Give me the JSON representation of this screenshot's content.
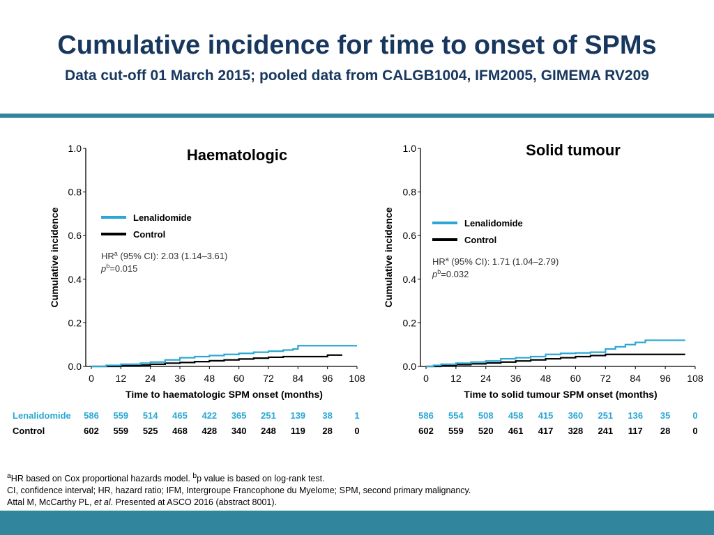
{
  "header": {
    "title": "Cumulative incidence for time to onset of SPMs",
    "subtitle": "Data cut-off 01 March 2015; pooled data from CALGB1004, IFM2005, GIMEMA RV209"
  },
  "colors": {
    "title_text": "#17375e",
    "rule": "#31859c",
    "footer_band": "#31859c",
    "lenalidomide": "#2aa7d4",
    "control": "#000000",
    "risk_lenalidomide_text": "#2aa7d4"
  },
  "risk_table": {
    "lenalidomide_label": "Lenalidomide",
    "control_label": "Control"
  },
  "footnotes": {
    "line1_sup_a": "a",
    "line1_part1": "HR based on Cox proportional hazards model. ",
    "line1_sup_b": "b",
    "line1_part2": "p value is based on log-rank test.",
    "line2": "CI, confidence interval; HR, hazard ratio; IFM, Intergroupe Francophone du Myelome; SPM, second primary malignancy.",
    "line3_part1": "Attal M, McCarthy PL, ",
    "line3_italic": "et al",
    "line3_part2": ". Presented at ASCO 2016 (abstract 8001)."
  },
  "chart_data": [
    {
      "type": "line",
      "title": "Haematologic",
      "xlabel": "Time to haematologic SPM onset (months)",
      "ylabel": "Cumulative incidence",
      "xlim": [
        0,
        108
      ],
      "ylim": [
        0,
        1.0
      ],
      "x_ticks": [
        "0",
        "12",
        "24",
        "36",
        "48",
        "60",
        "72",
        "84",
        "96",
        "108"
      ],
      "y_ticks": [
        "0.0",
        "0.2",
        "0.4",
        "0.6",
        "0.8",
        "1.0"
      ],
      "grid": false,
      "legend_position": "middle-left",
      "annotation_hr_label": "HR",
      "annotation_hr_sup": "a",
      "annotation_hr_text": " (95% CI): 2.03 (1.14–3.61)",
      "annotation_p_label": "p",
      "annotation_p_sup": "b",
      "annotation_p_text": "=0.015",
      "series": [
        {
          "name": "Lenalidomide",
          "color": "#2aa7d4",
          "x": [
            0,
            6,
            12,
            20,
            24,
            30,
            36,
            42,
            48,
            54,
            60,
            66,
            72,
            78,
            82,
            84,
            90,
            96,
            102,
            108
          ],
          "y": [
            0,
            0.005,
            0.01,
            0.015,
            0.02,
            0.03,
            0.04,
            0.045,
            0.05,
            0.055,
            0.06,
            0.065,
            0.07,
            0.075,
            0.08,
            0.095,
            0.095,
            0.095,
            0.095,
            0.095
          ]
        },
        {
          "name": "Control",
          "color": "#000000",
          "x": [
            0,
            12,
            20,
            24,
            30,
            36,
            42,
            48,
            54,
            60,
            66,
            72,
            78,
            84,
            90,
            96,
            102
          ],
          "y": [
            0,
            0.003,
            0.006,
            0.01,
            0.015,
            0.018,
            0.022,
            0.026,
            0.03,
            0.034,
            0.038,
            0.042,
            0.045,
            0.045,
            0.045,
            0.052,
            0.052
          ]
        }
      ],
      "risk_lenalidomide": [
        "586",
        "559",
        "514",
        "465",
        "422",
        "365",
        "251",
        "139",
        "38",
        "1"
      ],
      "risk_control": [
        "602",
        "559",
        "525",
        "468",
        "428",
        "340",
        "248",
        "119",
        "28",
        "0"
      ]
    },
    {
      "type": "line",
      "title": "Solid tumour",
      "xlabel": "Time to solid tumour SPM onset (months)",
      "ylabel": "Cumulative incidence",
      "xlim": [
        0,
        108
      ],
      "ylim": [
        0,
        1.0
      ],
      "x_ticks": [
        "0",
        "12",
        "24",
        "36",
        "48",
        "60",
        "72",
        "84",
        "96",
        "108"
      ],
      "y_ticks": [
        "0.0",
        "0.2",
        "0.4",
        "0.6",
        "0.8",
        "1.0"
      ],
      "grid": false,
      "legend_position": "middle-left",
      "annotation_hr_label": "HR",
      "annotation_hr_sup": "a",
      "annotation_hr_text": " (95% CI): 1.71 (1.04–2.79)",
      "annotation_p_label": "p",
      "annotation_p_sup": "b",
      "annotation_p_text": "=0.032",
      "series": [
        {
          "name": "Lenalidomide",
          "color": "#2aa7d4",
          "x": [
            0,
            3,
            6,
            12,
            18,
            24,
            30,
            36,
            42,
            48,
            54,
            60,
            66,
            72,
            76,
            80,
            84,
            88,
            96,
            104
          ],
          "y": [
            0,
            0.005,
            0.01,
            0.015,
            0.02,
            0.025,
            0.035,
            0.04,
            0.045,
            0.055,
            0.06,
            0.062,
            0.065,
            0.08,
            0.09,
            0.1,
            0.11,
            0.12,
            0.12,
            0.12
          ]
        },
        {
          "name": "Control",
          "color": "#000000",
          "x": [
            0,
            6,
            12,
            18,
            24,
            30,
            36,
            42,
            48,
            54,
            60,
            66,
            72,
            78,
            84,
            90,
            96,
            104
          ],
          "y": [
            0,
            0.004,
            0.008,
            0.012,
            0.016,
            0.02,
            0.025,
            0.03,
            0.035,
            0.04,
            0.045,
            0.05,
            0.055,
            0.055,
            0.055,
            0.055,
            0.055,
            0.055
          ]
        }
      ],
      "risk_lenalidomide": [
        "586",
        "554",
        "508",
        "458",
        "415",
        "360",
        "251",
        "136",
        "35",
        "0"
      ],
      "risk_control": [
        "602",
        "559",
        "520",
        "461",
        "417",
        "328",
        "241",
        "117",
        "28",
        "0"
      ]
    }
  ]
}
